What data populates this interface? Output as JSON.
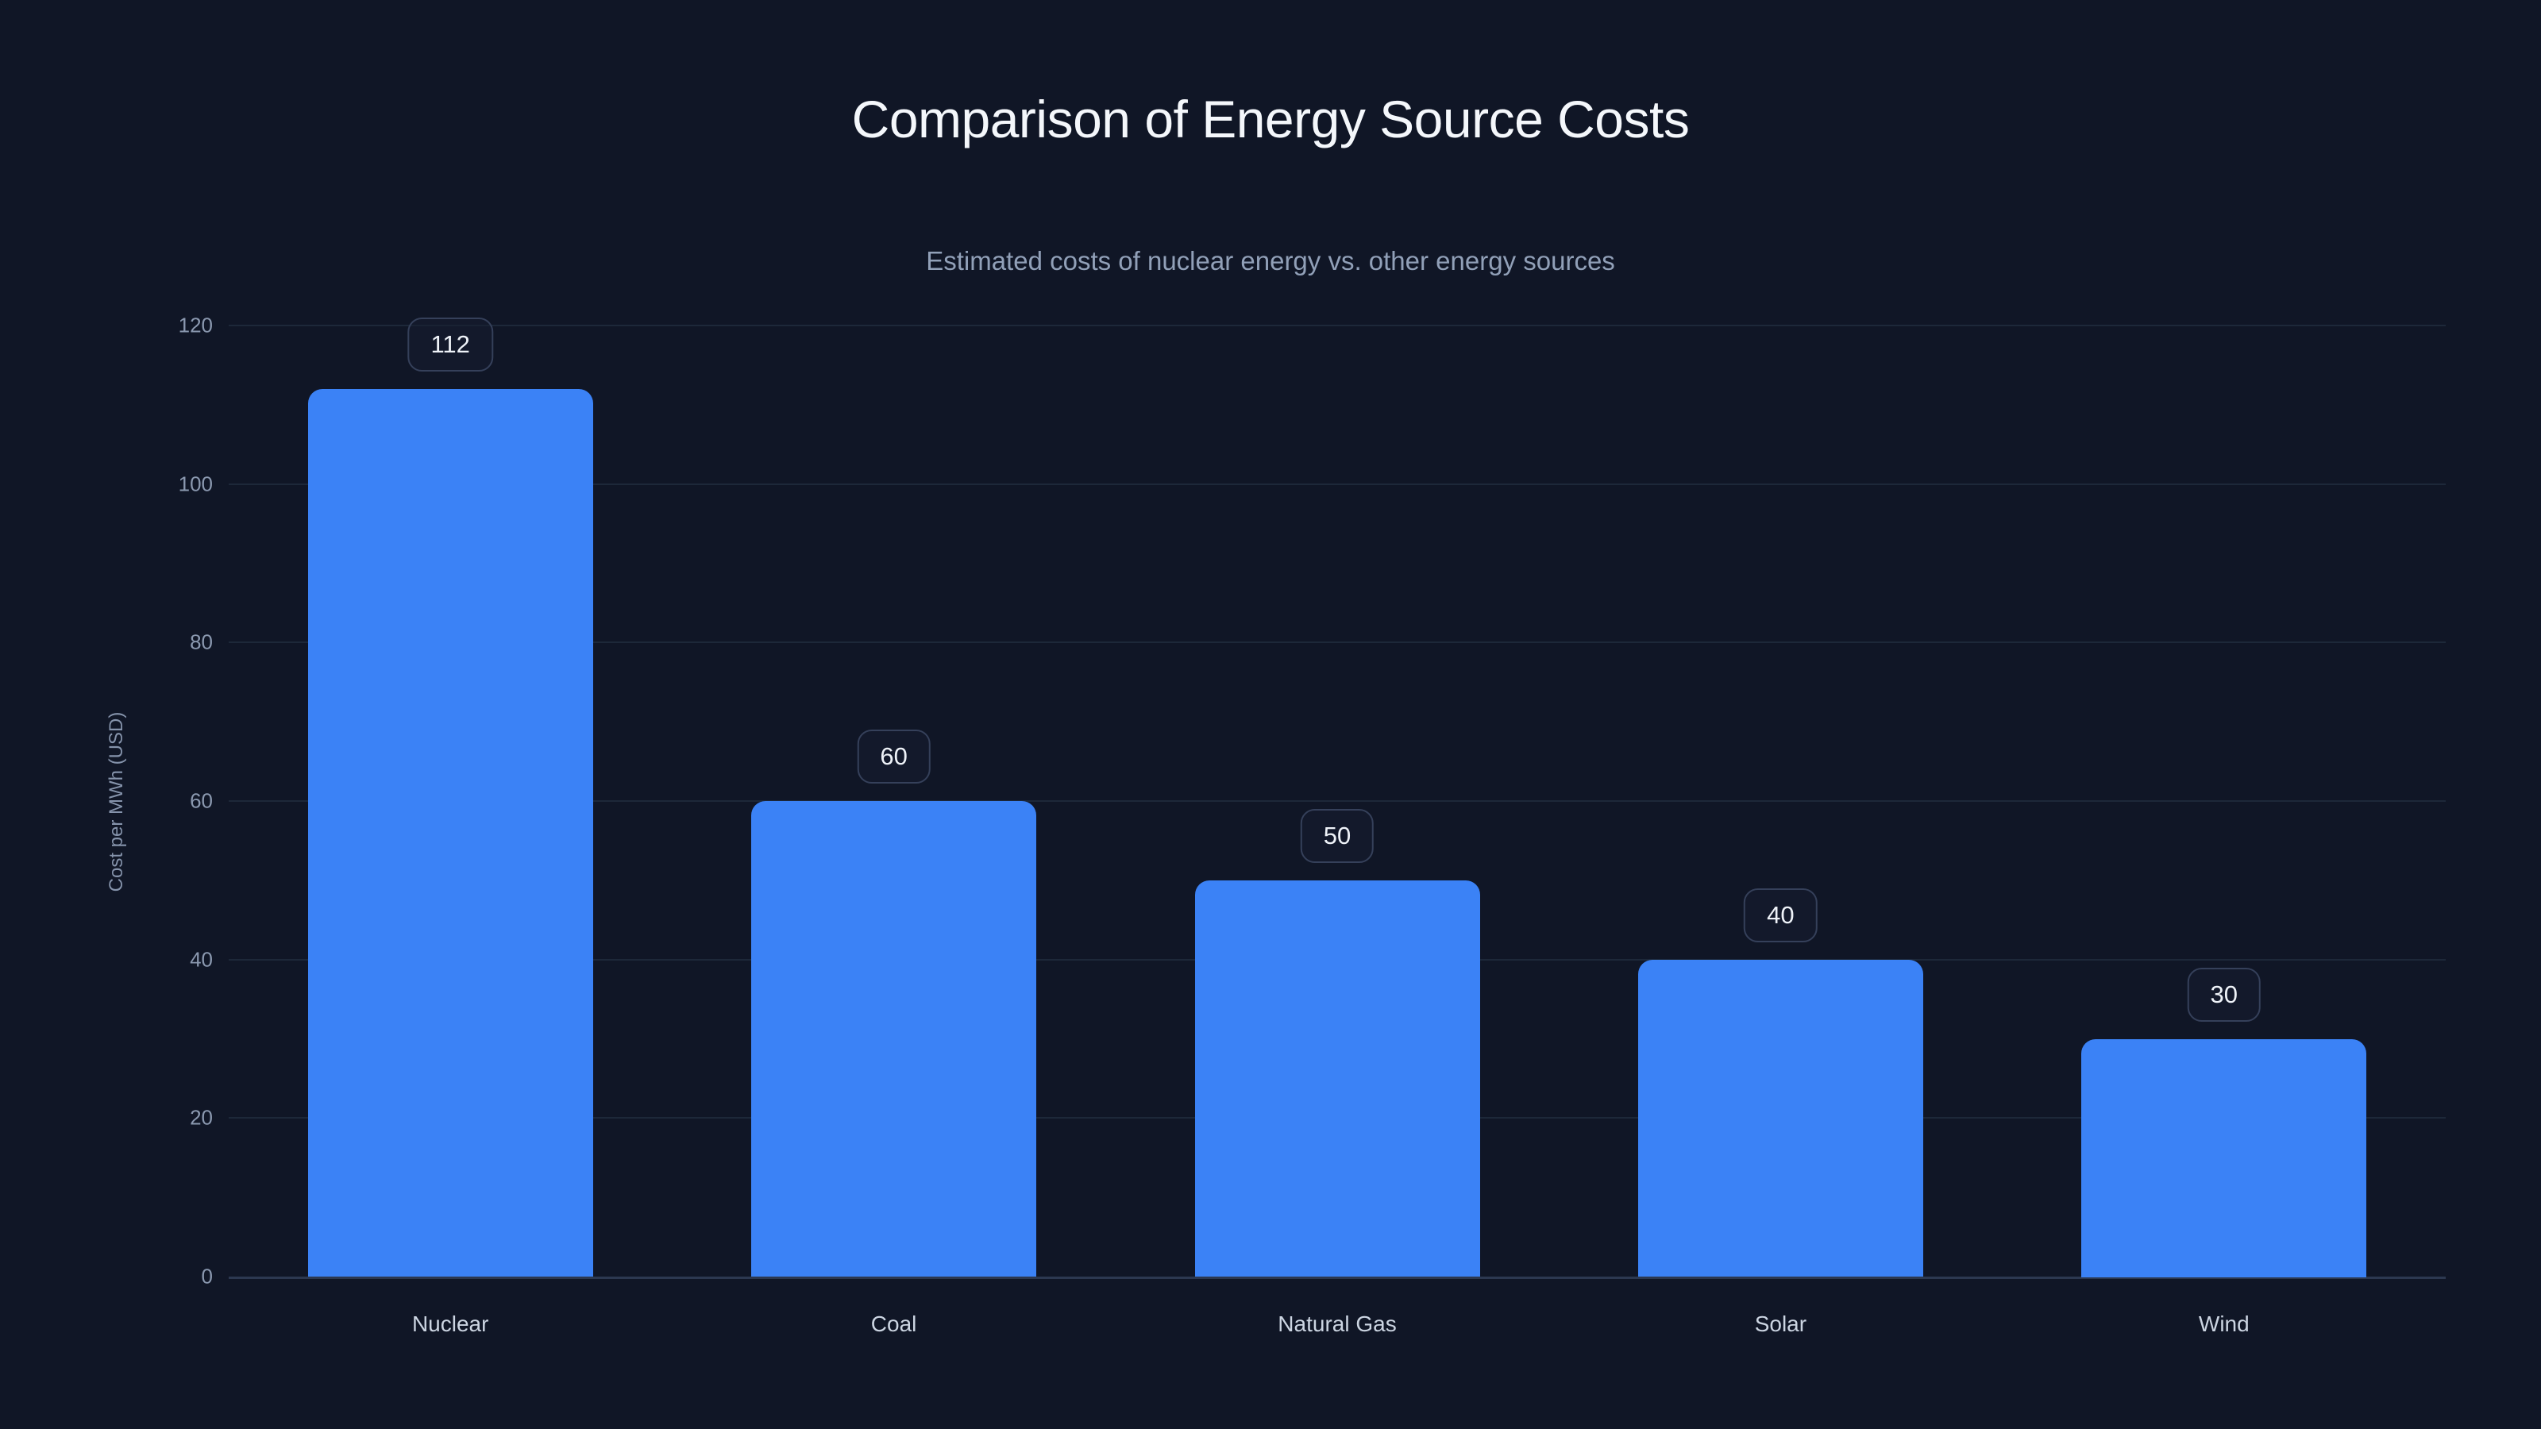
{
  "header": {
    "title": "Comparison of Energy Source Costs",
    "subtitle": "Estimated costs of nuclear energy vs. other energy sources"
  },
  "chart_data": {
    "type": "bar",
    "title": "Comparison of Energy Source Costs",
    "subtitle": "Estimated costs of nuclear energy vs. other energy sources",
    "categories": [
      "Nuclear",
      "Coal",
      "Natural Gas",
      "Solar",
      "Wind"
    ],
    "values": [
      112,
      60,
      50,
      40,
      30
    ],
    "value_labels": [
      "112",
      "60",
      "50",
      "40",
      "30"
    ],
    "xlabel": "",
    "ylabel": "Cost per MWh (USD)",
    "ylim": [
      0,
      120
    ],
    "y_ticks": [
      0,
      20,
      40,
      60,
      80,
      100,
      120
    ],
    "grid": "horizontal-only",
    "legend": "none",
    "bar_color": "#3b82f6"
  },
  "colors": {
    "background": "#101626",
    "bar": "#3b82f6",
    "gridline": "#1d2839",
    "axis_line": "#2c3850",
    "title_text": "#f4f7fb",
    "subtitle_text": "#91a0b8",
    "tick_text": "#8b99b0",
    "category_text": "#ccd5e2",
    "value_pill_border": "#35405a",
    "value_pill_text": "#eef2f8"
  }
}
